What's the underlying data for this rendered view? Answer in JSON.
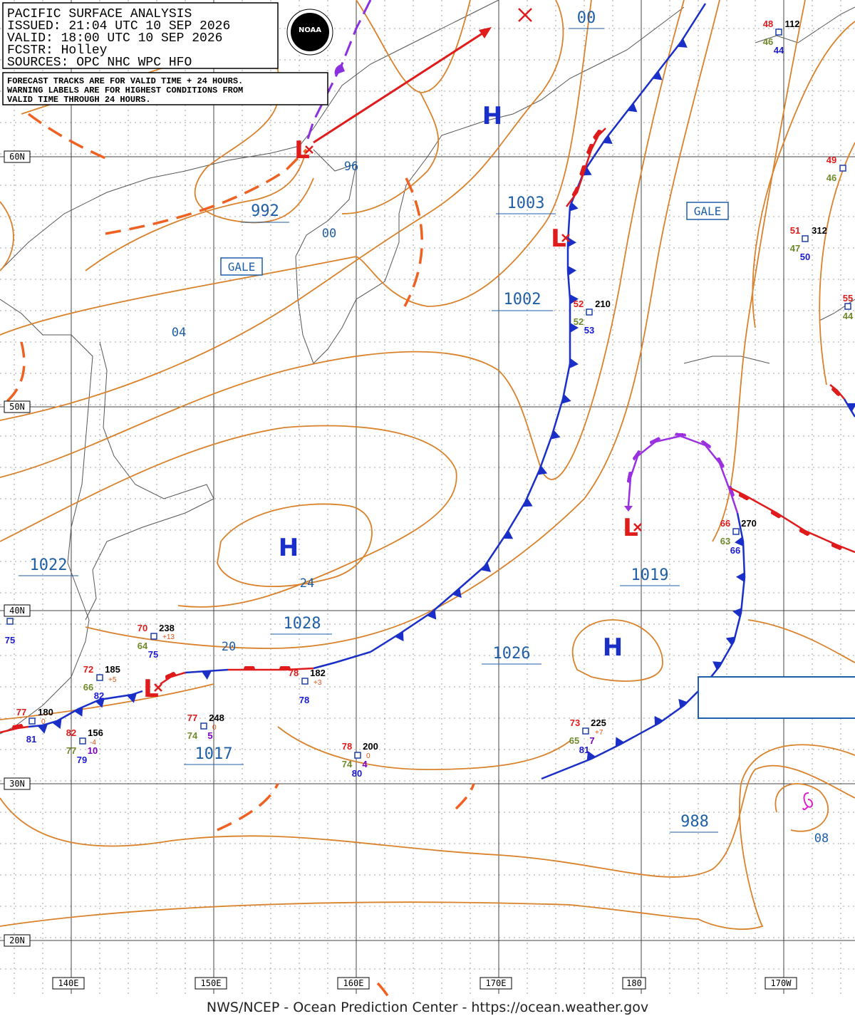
{
  "header": {
    "lines": [
      "PACIFIC SURFACE ANALYSIS",
      "ISSUED: 21:04 UTC 10 SEP 2026",
      "VALID:  18:00 UTC 10 SEP 2026",
      "FCSTR:  Holley",
      "SOURCES: OPC NHC WPC HFO"
    ],
    "notes": [
      "FORECAST TRACKS ARE FOR VALID TIME + 24 HOURS.",
      "WARNING LABELS ARE FOR HIGHEST CONDITIONS FROM",
      "VALID TIME THROUGH 24 HOURS."
    ]
  },
  "logo": "NOAA",
  "latitude_labels": [
    "60N",
    "50N",
    "40N",
    "30N",
    "20N"
  ],
  "longitude_labels": [
    "140E",
    "150E",
    "160E",
    "170E",
    "180",
    "170W"
  ],
  "central_pressures": [
    "00",
    "992",
    "1003",
    "1002",
    "1022",
    "1028",
    "1026",
    "1017",
    "1019",
    "988"
  ],
  "isobar_labels": [
    "96",
    "00",
    "04",
    "24",
    "20",
    "08"
  ],
  "warnings": [
    "GALE",
    "GALE"
  ],
  "highs": [
    "H",
    "H",
    "H"
  ],
  "lows": [
    "L",
    "L",
    "L",
    "L"
  ],
  "stations": [
    [
      "48",
      "112",
      "46",
      "44"
    ],
    [
      "49",
      "46"
    ],
    [
      "51",
      "312",
      "47",
      "50"
    ],
    [
      "55",
      "44"
    ],
    [
      "52",
      "210",
      "52",
      "53"
    ],
    [
      "66",
      "270",
      "63",
      "66"
    ],
    [
      "75"
    ],
    [
      "70",
      "238",
      "+13",
      "64",
      "75"
    ],
    [
      "72",
      "185",
      "+5",
      "66",
      "82"
    ],
    [
      "78",
      "182",
      "+3",
      "78"
    ],
    [
      "77",
      "180",
      "0",
      "81"
    ],
    [
      "82",
      "156",
      "-4",
      "77",
      "10",
      "79"
    ],
    [
      "77",
      "248",
      "0",
      "74",
      "5"
    ],
    [
      "78",
      "200",
      "0",
      "74",
      "4",
      "80"
    ],
    [
      "73",
      "225",
      "+7",
      "65",
      "7",
      "81"
    ]
  ],
  "footer": "NWS/NCEP - Ocean Prediction Center - https://ocean.weather.gov"
}
